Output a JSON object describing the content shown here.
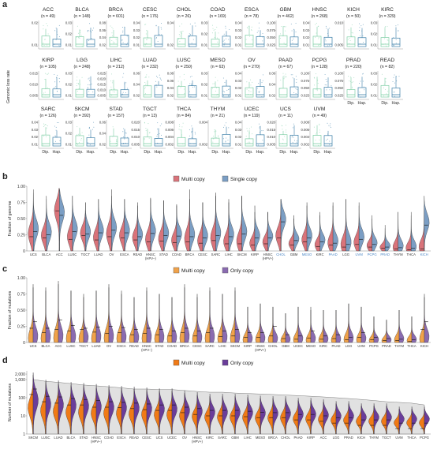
{
  "panels": {
    "a": "a",
    "b": "b",
    "c": "c",
    "d": "d"
  },
  "chart_data": [
    {
      "type": "box",
      "panel": "a",
      "ylabel": "Genomic loss rate",
      "xcategories": [
        "Dip.",
        "Hap."
      ],
      "facets": [
        {
          "title": "ACC",
          "n": "(n = 49)",
          "ticks": [
            "0.02",
            "0.01"
          ]
        },
        {
          "title": "BLCA",
          "n": "(n = 148)",
          "ticks": [
            "0.03",
            "0.02",
            "0.01"
          ]
        },
        {
          "title": "BRCA",
          "n": "(n = 601)",
          "ticks": [
            "0.08",
            "0.06",
            "0.04",
            "0.02"
          ]
        },
        {
          "title": "CESC",
          "n": "(n = 176)",
          "ticks": [
            "0.04",
            "0.03",
            "0.02",
            "0.01"
          ]
        },
        {
          "title": "CHOL",
          "n": "(n = 26)",
          "ticks": [
            "0.04",
            "0.02"
          ]
        },
        {
          "title": "COAD",
          "n": "(n = 169)",
          "ticks": [
            "0.03",
            "0.02",
            "0.01"
          ]
        },
        {
          "title": "ESCA",
          "n": "(n = 78)",
          "ticks": [
            "0.04",
            "0.03",
            "0.02",
            "0.01"
          ]
        },
        {
          "title": "GBM",
          "n": "(n = 462)",
          "ticks": [
            "0.100",
            "0.075",
            "0.050",
            "0.025"
          ]
        },
        {
          "title": "HNSC",
          "n": "(n = 268)",
          "ticks": [
            "0.04",
            "0.03",
            "0.02",
            "0.01"
          ]
        },
        {
          "title": "KICH",
          "n": "(n = 50)",
          "ticks": [
            "0.010",
            "0.005"
          ]
        },
        {
          "title": "KIRC",
          "n": "(n = 329)",
          "ticks": [
            "0.03",
            "0.02",
            "0.01"
          ]
        },
        {
          "title": "KIRP",
          "n": "(n = 105)",
          "ticks": [
            "0.015",
            "0.010",
            "0.005"
          ]
        },
        {
          "title": "LGG",
          "n": "(n = 248)",
          "ticks": [
            "0.03",
            "0.02",
            "0.01"
          ]
        },
        {
          "title": "LIHC",
          "n": "(n = 212)",
          "ticks": [
            "0.025",
            "0.020",
            "0.015",
            "0.010",
            "0.005"
          ]
        },
        {
          "title": "LUAD",
          "n": "(n = 232)",
          "ticks": [
            "0.06",
            "0.04",
            "0.02"
          ]
        },
        {
          "title": "LUSC",
          "n": "(n = 250)",
          "ticks": [
            "0.08",
            "0.06",
            "0.04",
            "0.02"
          ]
        },
        {
          "title": "MESO",
          "n": "(n = 63)",
          "ticks": [
            "0.03",
            "0.02",
            "0.01"
          ]
        },
        {
          "title": "OV",
          "n": "(n = 270)",
          "ticks": [
            "0.04",
            "0.03",
            "0.02",
            "0.01"
          ]
        },
        {
          "title": "PAAD",
          "n": "(n = 67)",
          "ticks": [
            "0.06",
            "0.04",
            "0.02"
          ]
        },
        {
          "title": "PCPG",
          "n": "(n = 128)",
          "ticks": [
            "0.100",
            "0.075",
            "0.050",
            "0.025"
          ]
        },
        {
          "title": "PRAD",
          "n": "(n = 220)",
          "ticks": [
            "0.100",
            "0.075",
            "0.050",
            "0.025"
          ]
        },
        {
          "title": "READ",
          "n": "(n = 82)",
          "ticks": [
            "0.03",
            "0.02",
            "0.01"
          ]
        },
        {
          "title": "SARC",
          "n": "(n = 126)",
          "ticks": [
            "0.04",
            "0.03",
            "0.02",
            "0.01"
          ]
        },
        {
          "title": "SKCM",
          "n": "(n = 392)",
          "ticks": [
            "0.03",
            "0.02",
            "0.01"
          ]
        },
        {
          "title": "STAD",
          "n": "(n = 157)",
          "ticks": [
            "0.06",
            "0.04",
            "0.02"
          ]
        },
        {
          "title": "TGCT",
          "n": "(n = 13)",
          "ticks": [
            "0.020",
            "0.015",
            "0.010",
            "0.005"
          ]
        },
        {
          "title": "THCA",
          "n": "(n = 84)",
          "ticks": [
            "0.008",
            "0.006",
            "0.004",
            "0.002"
          ]
        },
        {
          "title": "THYM",
          "n": "(n = 21)",
          "ticks": [
            "0.004",
            "0.002"
          ]
        },
        {
          "title": "UCEC",
          "n": "(n = 119)",
          "ticks": [
            "0.04",
            "0.03",
            "0.02",
            "0.01"
          ]
        },
        {
          "title": "UCS",
          "n": "(n = 11)",
          "ticks": [
            "0.020",
            "0.015",
            "0.010",
            "0.005"
          ]
        },
        {
          "title": "UVM",
          "n": "(n = 49)",
          "ticks": [
            "0.008",
            "0.006",
            "0.004",
            "0.002"
          ]
        }
      ]
    },
    {
      "type": "violin",
      "panel": "b",
      "ylabel": "Fraction of genome",
      "ylim": [
        0,
        1
      ],
      "yticks": [
        "1.00",
        "0.75",
        "0.50",
        "0.25",
        "0"
      ],
      "series": [
        {
          "name": "Multi copy",
          "color": "#d9737a"
        },
        {
          "name": "Single copy",
          "color": "#7b9ec4"
        }
      ],
      "categories": [
        "UCS",
        "BLCA",
        "ACC",
        "LUSC",
        "TGCT",
        "LUAD",
        "OV",
        "ESCA",
        "READ",
        "HNSC (HPV–)",
        "STAD",
        "COAD",
        "BRCA",
        "CESC",
        "SARC",
        "LIHC",
        "SKCM",
        "KIRP",
        "HNSC (HPV+)",
        "CHOL",
        "GBM",
        "MESO",
        "KIRC",
        "PAAD",
        "LGG",
        "UVM",
        "PCPG",
        "PRAD",
        "THYM",
        "THCA",
        "KICH"
      ],
      "highlighted": [
        "CHOL",
        "MESO",
        "PAAD",
        "UVM",
        "PCPG",
        "PRAD",
        "KICH"
      ],
      "multi_median": [
        0.22,
        0.2,
        0.62,
        0.18,
        0.24,
        0.17,
        0.22,
        0.2,
        0.17,
        0.14,
        0.15,
        0.13,
        0.14,
        0.12,
        0.16,
        0.11,
        0.11,
        0.09,
        0.11,
        0.2,
        0.09,
        0.14,
        0.07,
        0.09,
        0.06,
        0.1,
        0.06,
        0.04,
        0.03,
        0.02,
        0.03
      ],
      "multi_max": [
        0.95,
        0.8,
        0.97,
        0.85,
        0.75,
        0.8,
        0.95,
        0.8,
        0.75,
        0.82,
        0.78,
        0.72,
        0.95,
        0.75,
        0.9,
        0.75,
        0.85,
        0.6,
        0.6,
        0.8,
        0.5,
        0.7,
        0.55,
        0.75,
        0.8,
        0.7,
        0.5,
        0.35,
        0.6,
        0.55,
        0.7
      ],
      "single_median": [
        0.3,
        0.25,
        0.55,
        0.3,
        0.26,
        0.28,
        0.32,
        0.28,
        0.22,
        0.27,
        0.24,
        0.23,
        0.22,
        0.2,
        0.24,
        0.22,
        0.26,
        0.2,
        0.2,
        0.45,
        0.16,
        0.2,
        0.14,
        0.12,
        0.1,
        0.18,
        0.1,
        0.06,
        0.05,
        0.04,
        0.4
      ],
      "single_max": [
        0.9,
        0.85,
        0.95,
        0.85,
        0.75,
        0.8,
        0.85,
        0.8,
        0.7,
        0.8,
        0.78,
        0.7,
        0.8,
        0.75,
        0.85,
        0.8,
        0.85,
        0.7,
        0.6,
        0.8,
        0.55,
        0.75,
        0.6,
        0.7,
        0.8,
        0.75,
        0.55,
        0.4,
        0.6,
        0.6,
        0.85
      ]
    },
    {
      "type": "violin",
      "panel": "c",
      "ylabel": "Fraction of mutations",
      "ylim": [
        0,
        1
      ],
      "yticks": [
        "1.00",
        "0.75",
        "0.50",
        "0.25",
        "0"
      ],
      "series": [
        {
          "name": "Multi copy",
          "color": "#f0a24a"
        },
        {
          "name": "Only copy",
          "color": "#8a6bb0"
        }
      ],
      "categories": [
        "UCS",
        "BLCA",
        "ACC",
        "LUSC",
        "TGCT",
        "LUAD",
        "OV",
        "ESCA",
        "READ",
        "HNSC (HPV–)",
        "STAD",
        "COAD",
        "BRCA",
        "CESC",
        "SARC",
        "LIHC",
        "SKCM",
        "KIRP",
        "HNSC (HPV+)",
        "CHOL",
        "GBM",
        "UCEC",
        "MESO",
        "KIRC",
        "PAAD",
        "LGG",
        "UVM",
        "PCPG",
        "PRAD",
        "THYM",
        "THCA",
        "KICH"
      ],
      "multi_median": [
        0.22,
        0.15,
        0.2,
        0.18,
        0.2,
        0.16,
        0.14,
        0.15,
        0.12,
        0.14,
        0.12,
        0.1,
        0.15,
        0.1,
        0.15,
        0.09,
        0.1,
        0.08,
        0.08,
        0.1,
        0.06,
        0.05,
        0.07,
        0.05,
        0.06,
        0.04,
        0.08,
        0.04,
        0.03,
        0.03,
        0.02,
        0.2
      ],
      "multi_max": [
        0.9,
        0.85,
        0.95,
        0.8,
        0.75,
        0.8,
        0.9,
        0.8,
        0.7,
        0.85,
        0.75,
        0.7,
        0.9,
        0.75,
        0.85,
        0.75,
        0.85,
        0.55,
        0.6,
        0.55,
        0.45,
        0.55,
        0.5,
        0.5,
        0.5,
        0.6,
        0.55,
        0.4,
        0.35,
        0.5,
        0.4,
        0.7
      ],
      "only_median": [
        0.32,
        0.22,
        0.35,
        0.26,
        0.22,
        0.24,
        0.25,
        0.23,
        0.2,
        0.22,
        0.2,
        0.18,
        0.22,
        0.18,
        0.22,
        0.18,
        0.2,
        0.15,
        0.15,
        0.25,
        0.12,
        0.1,
        0.18,
        0.1,
        0.12,
        0.08,
        0.15,
        0.08,
        0.06,
        0.05,
        0.04,
        0.32
      ],
      "only_max": [
        0.85,
        0.8,
        0.9,
        0.8,
        0.7,
        0.8,
        0.85,
        0.75,
        0.7,
        0.8,
        0.75,
        0.7,
        0.85,
        0.7,
        0.8,
        0.75,
        0.8,
        0.55,
        0.6,
        0.55,
        0.45,
        0.55,
        0.55,
        0.5,
        0.5,
        0.6,
        0.55,
        0.4,
        0.35,
        0.5,
        0.4,
        0.75
      ]
    },
    {
      "type": "violin",
      "panel": "d",
      "ylabel": "Number of mutations",
      "yscale": "log",
      "yticks": [
        "2,000",
        "1,000",
        "100",
        "10",
        "1"
      ],
      "series": [
        {
          "name": "Multi copy",
          "color": "#f07a16"
        },
        {
          "name": "Only copy",
          "color": "#6a3d9a"
        }
      ],
      "categories": [
        "SKCM",
        "LUSC",
        "LUAD",
        "BLCA",
        "STAD",
        "HNSC (HPV–)",
        "COAD",
        "ESCA",
        "READ",
        "CESC",
        "UCS",
        "UCEC",
        "OV",
        "HNSC (HPV+)",
        "KIRC",
        "SARC",
        "GBM",
        "LIHC",
        "MESO",
        "BRCA",
        "CHOL",
        "PAAD",
        "KIRP",
        "ACC",
        "LGG",
        "PRAD",
        "KICH",
        "THYM",
        "TGCT",
        "UVM",
        "THCA",
        "PCPG"
      ],
      "multi_median": [
        150,
        60,
        50,
        40,
        40,
        30,
        30,
        28,
        25,
        22,
        20,
        20,
        15,
        12,
        10,
        10,
        10,
        9,
        8,
        8,
        8,
        6,
        6,
        5,
        4,
        4,
        3,
        3,
        3,
        2,
        2,
        2
      ],
      "only_median": [
        300,
        120,
        110,
        90,
        80,
        70,
        60,
        55,
        50,
        45,
        40,
        40,
        30,
        25,
        20,
        20,
        20,
        18,
        16,
        15,
        15,
        12,
        12,
        10,
        8,
        8,
        6,
        6,
        6,
        4,
        4,
        4
      ],
      "trend": [
        1000,
        800,
        700,
        600,
        500,
        450,
        400,
        350,
        300,
        300,
        280,
        280,
        250,
        220,
        200,
        200,
        180,
        170,
        160,
        150,
        140,
        130,
        120,
        110,
        100,
        90,
        80,
        70,
        60,
        55,
        50,
        40
      ]
    }
  ]
}
